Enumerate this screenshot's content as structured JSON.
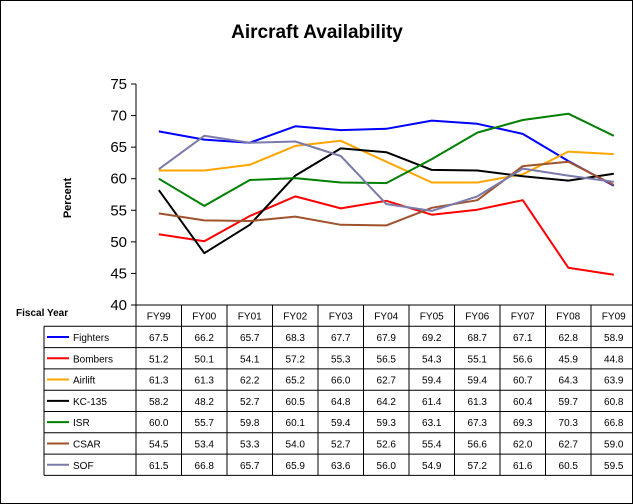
{
  "chart_data": {
    "type": "line",
    "title": "Aircraft Availability",
    "ylabel": "Percent",
    "xlabel": "Fiscal Year",
    "ylim": [
      40,
      75
    ],
    "yticks": [
      "40",
      "45",
      "50",
      "55",
      "60",
      "65",
      "70",
      "75"
    ],
    "categories": [
      "FY99",
      "FY00",
      "FY01",
      "FY02",
      "FY03",
      "FY04",
      "FY05",
      "FY06",
      "FY07",
      "FY08",
      "FY09"
    ],
    "grid": false,
    "legend": "table-below",
    "series": [
      {
        "name": "Fighters",
        "color": "#0000ff",
        "values": [
          67.5,
          66.2,
          65.7,
          68.3,
          67.7,
          67.9,
          69.2,
          68.7,
          67.1,
          62.8,
          58.9
        ],
        "labels": [
          "67.5",
          "66.2",
          "65.7",
          "68.3",
          "67.7",
          "67.9",
          "69.2",
          "68.7",
          "67.1",
          "62.8",
          "58.9"
        ]
      },
      {
        "name": "Bombers",
        "color": "#ff0000",
        "values": [
          51.2,
          50.1,
          54.1,
          57.2,
          55.3,
          56.5,
          54.3,
          55.1,
          56.6,
          45.9,
          44.8
        ],
        "labels": [
          "51.2",
          "50.1",
          "54.1",
          "57.2",
          "55.3",
          "56.5",
          "54.3",
          "55.1",
          "56.6",
          "45.9",
          "44.8"
        ]
      },
      {
        "name": "Airlift",
        "color": "#ffa500",
        "values": [
          61.3,
          61.3,
          62.2,
          65.2,
          66.0,
          62.7,
          59.4,
          59.4,
          60.7,
          64.3,
          63.9
        ],
        "labels": [
          "61.3",
          "61.3",
          "62.2",
          "65.2",
          "66.0",
          "62.7",
          "59.4",
          "59.4",
          "60.7",
          "64.3",
          "63.9"
        ]
      },
      {
        "name": "KC-135",
        "color": "#000000",
        "values": [
          58.2,
          48.2,
          52.7,
          60.5,
          64.8,
          64.2,
          61.4,
          61.3,
          60.4,
          59.7,
          60.8
        ],
        "labels": [
          "58.2",
          "48.2",
          "52.7",
          "60.5",
          "64.8",
          "64.2",
          "61.4",
          "61.3",
          "60.4",
          "59.7",
          "60.8"
        ]
      },
      {
        "name": "ISR",
        "color": "#008000",
        "values": [
          60.0,
          55.7,
          59.8,
          60.1,
          59.4,
          59.3,
          63.1,
          67.3,
          69.3,
          70.3,
          66.8
        ],
        "labels": [
          "60.0",
          "55.7",
          "59.8",
          "60.1",
          "59.4",
          "59.3",
          "63.1",
          "67.3",
          "69.3",
          "70.3",
          "66.8"
        ]
      },
      {
        "name": "CSAR",
        "color": "#a0522d",
        "values": [
          54.5,
          53.4,
          53.3,
          54.0,
          52.7,
          52.6,
          55.4,
          56.6,
          62.0,
          62.7,
          59.0
        ],
        "labels": [
          "54.5",
          "53.4",
          "53.3",
          "54.0",
          "52.7",
          "52.6",
          "55.4",
          "56.6",
          "62.0",
          "62.7",
          "59.0"
        ]
      },
      {
        "name": "SOF",
        "color": "#7b7bab",
        "values": [
          61.5,
          66.8,
          65.7,
          65.9,
          63.6,
          56.0,
          54.9,
          57.2,
          61.6,
          60.5,
          59.5
        ],
        "labels": [
          "61.5",
          "66.8",
          "65.7",
          "65.9",
          "63.6",
          "56.0",
          "54.9",
          "57.2",
          "61.6",
          "60.5",
          "59.5"
        ]
      }
    ]
  }
}
